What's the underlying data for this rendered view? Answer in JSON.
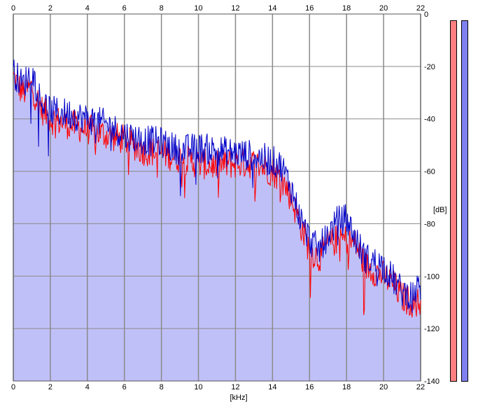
{
  "chart_data": {
    "type": "area",
    "xlabel": "[kHz]",
    "ylabel": "[dB]",
    "xlim": [
      0,
      22
    ],
    "ylim": [
      -140,
      0
    ],
    "x_ticks": [
      "0",
      "2",
      "4",
      "6",
      "8",
      "10",
      "12",
      "14",
      "16",
      "18",
      "20",
      "22"
    ],
    "y_ticks": [
      "0",
      "-20",
      "-40",
      "-60",
      "-80",
      "-100",
      "-120",
      "-140"
    ],
    "grid": true,
    "series": [
      {
        "color": "#ff0000",
        "points": [
          [
            0,
            -24
          ],
          [
            0.5,
            -30
          ],
          [
            1,
            -28
          ],
          [
            1.5,
            -36
          ],
          [
            2,
            -40
          ],
          [
            3,
            -42
          ],
          [
            4,
            -44
          ],
          [
            5,
            -46
          ],
          [
            6,
            -48
          ],
          [
            7,
            -52
          ],
          [
            8,
            -53
          ],
          [
            9,
            -55
          ],
          [
            10,
            -57
          ],
          [
            11,
            -58
          ],
          [
            12,
            -57
          ],
          [
            13,
            -57
          ],
          [
            14,
            -60
          ],
          [
            14.5,
            -63
          ],
          [
            15,
            -70
          ],
          [
            15.5,
            -80
          ],
          [
            16,
            -90
          ],
          [
            16.5,
            -93
          ],
          [
            17,
            -88
          ],
          [
            17.5,
            -86
          ],
          [
            18,
            -86
          ],
          [
            18.5,
            -88
          ],
          [
            19,
            -96
          ],
          [
            20,
            -100
          ],
          [
            20.5,
            -103
          ],
          [
            21,
            -108
          ],
          [
            21.5,
            -110
          ],
          [
            22,
            -110
          ]
        ]
      },
      {
        "color": "#0000c8",
        "points": [
          [
            0,
            -22
          ],
          [
            0.5,
            -27
          ],
          [
            1,
            -22
          ],
          [
            1.5,
            -33
          ],
          [
            2,
            -37
          ],
          [
            3,
            -38
          ],
          [
            4,
            -40
          ],
          [
            5,
            -42
          ],
          [
            6,
            -46
          ],
          [
            7,
            -48
          ],
          [
            8,
            -49
          ],
          [
            9,
            -52
          ],
          [
            10,
            -51
          ],
          [
            11,
            -52
          ],
          [
            12,
            -53
          ],
          [
            13,
            -54
          ],
          [
            14,
            -56
          ],
          [
            14.5,
            -58
          ],
          [
            15,
            -66
          ],
          [
            15.5,
            -78
          ],
          [
            16,
            -86
          ],
          [
            16.5,
            -90
          ],
          [
            17,
            -84
          ],
          [
            17.5,
            -79
          ],
          [
            18,
            -78
          ],
          [
            18.5,
            -86
          ],
          [
            19,
            -93
          ],
          [
            20,
            -96
          ],
          [
            20.5,
            -101
          ],
          [
            21,
            -106
          ],
          [
            21.5,
            -107
          ],
          [
            22,
            -104
          ]
        ]
      }
    ],
    "fill_color": "#c0c0f8",
    "meters": [
      {
        "color": "#ff8080"
      },
      {
        "color": "#8080f0"
      }
    ]
  }
}
